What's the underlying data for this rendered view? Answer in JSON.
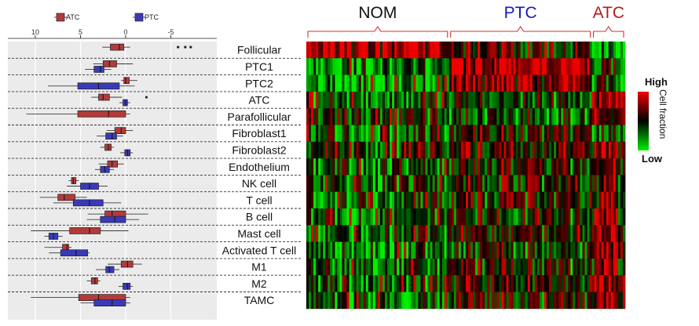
{
  "chart_data": {
    "type": "boxplot-heatmap",
    "rows": [
      "Follicular",
      "PTC1",
      "PTC2",
      "ATC",
      "Parafollicular",
      "Fibroblast1",
      "Fibroblast2",
      "Endothelium",
      "NK cell",
      "T cell",
      "B cell",
      "Mast cell",
      "Activated T cell",
      "M1",
      "M2",
      "TAMC"
    ],
    "boxplot": {
      "legend": [
        {
          "name": "ATC",
          "color": "#b33a3a"
        },
        {
          "name": "PTC",
          "color": "#3a3ab8"
        }
      ],
      "xticks": [
        "10",
        "5",
        "0",
        "-5"
      ],
      "xtick_values": [
        10,
        5,
        0,
        -5
      ],
      "xlim": [
        12,
        -9
      ],
      "series": [
        {
          "name": "ATC",
          "boxes": [
            [
              -0.5,
              0.2,
              0.7,
              1.7,
              2.6
            ],
            [
              -0.8,
              1.0,
              1.8,
              2.5,
              3.6
            ],
            [
              -1.3,
              -0.4,
              0.0,
              0.2,
              0.5
            ],
            [
              0.4,
              1.8,
              2.5,
              3.0,
              3.8
            ],
            [
              11.0,
              5.3,
              1.9,
              0.0,
              -0.5
            ],
            [
              -0.8,
              0.0,
              0.5,
              1.2,
              2.1
            ],
            [
              1.3,
              1.6,
              1.9,
              2.3,
              2.8
            ],
            [
              0.2,
              0.9,
              1.5,
              2.0,
              3.0
            ],
            [
              6.3,
              6.0,
              5.8,
              5.5,
              5.2
            ],
            [
              9.5,
              7.5,
              6.8,
              5.6,
              4.3
            ],
            [
              -2.5,
              0.0,
              1.5,
              2.3,
              4.2
            ],
            [
              10.5,
              6.2,
              4.0,
              2.8,
              -0.3
            ],
            [
              9.0,
              7.0,
              6.5,
              6.3,
              6.0
            ],
            [
              -1.8,
              -0.8,
              -0.2,
              0.5,
              2.0
            ],
            [
              2.8,
              3.1,
              3.4,
              3.8,
              4.3
            ],
            [
              10.5,
              5.2,
              3.0,
              0.0,
              -0.5
            ]
          ]
        },
        {
          "name": "PTC",
          "boxes": [
            [
              null,
              null,
              null,
              null,
              null
            ],
            [
              1.6,
              2.4,
              2.8,
              3.5,
              4.5
            ],
            [
              8.6,
              5.3,
              3.0,
              0.7,
              -1.0
            ],
            [
              -0.5,
              -0.2,
              0.0,
              0.3,
              0.7
            ],
            [
              null,
              null,
              null,
              null,
              null
            ],
            [
              0.3,
              1.0,
              1.5,
              2.2,
              3.2
            ],
            [
              -0.8,
              -0.5,
              -0.2,
              0.1,
              0.6
            ],
            [
              1.3,
              1.8,
              2.3,
              2.8,
              3.4
            ],
            [
              2.0,
              3.0,
              4.0,
              5.0,
              6.5
            ],
            [
              0.5,
              2.5,
              4.0,
              5.8,
              8.0
            ],
            [
              -1.5,
              0.0,
              1.2,
              2.8,
              4.3
            ],
            [
              9.0,
              8.5,
              8.0,
              7.5,
              7.0
            ],
            [
              4.0,
              4.2,
              5.5,
              7.2,
              8.5
            ],
            [
              0.7,
              1.3,
              1.8,
              2.2,
              3.3
            ],
            [
              -0.8,
              -0.5,
              -0.2,
              0.3,
              0.8
            ],
            [
              -0.5,
              0.0,
              1.5,
              3.5,
              5.0
            ]
          ]
        }
      ],
      "outliers": [
        {
          "row": "Follicular",
          "values": [
            -5.8,
            -6.6,
            -7.2
          ]
        },
        {
          "row": "ATC",
          "values": [
            -2.3
          ]
        }
      ]
    },
    "heatmap": {
      "groups": [
        {
          "name": "NOM",
          "color": "#111111"
        },
        {
          "name": "PTC",
          "color": "#1a1ab4"
        },
        {
          "name": "ATC",
          "color": "#b01e1e"
        }
      ],
      "group_sizes": [
        60,
        60,
        14
      ],
      "color_scale": {
        "low": "#00ee00",
        "mid": "#000000",
        "high": "#ee0000"
      },
      "scale_high_label": "High",
      "scale_low_label": "Low",
      "scale_title": "Cell fraction"
    }
  }
}
